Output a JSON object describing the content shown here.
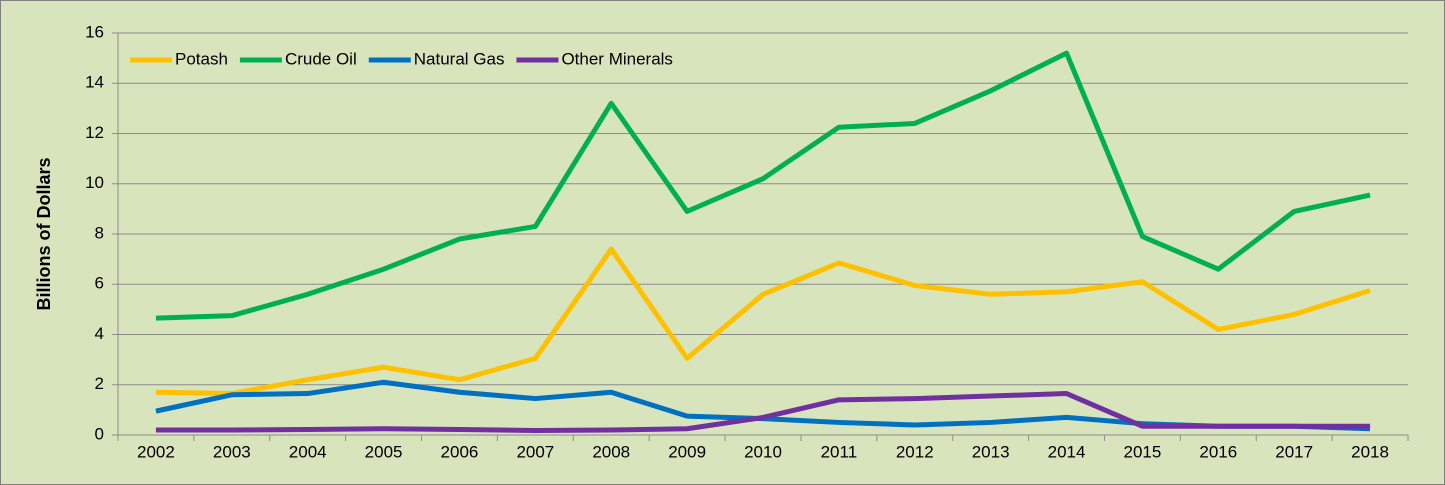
{
  "chart_data": {
    "type": "line",
    "y_label": "Billions of Dollars",
    "categories": [
      "2002",
      "2003",
      "2004",
      "2005",
      "2006",
      "2007",
      "2008",
      "2009",
      "2010",
      "2011",
      "2012",
      "2013",
      "2014",
      "2015",
      "2016",
      "2017",
      "2018"
    ],
    "series": [
      {
        "name": "Potash",
        "color": "#ffc000",
        "values": [
          1.7,
          1.65,
          2.2,
          2.7,
          2.2,
          3.05,
          7.4,
          3.05,
          5.6,
          6.85,
          5.95,
          5.6,
          5.7,
          6.1,
          4.2,
          4.8,
          5.75
        ]
      },
      {
        "name": "Crude Oil",
        "color": "#00b050",
        "values": [
          4.65,
          4.75,
          5.6,
          6.6,
          7.8,
          8.3,
          13.2,
          8.9,
          10.2,
          12.25,
          12.4,
          13.7,
          15.2,
          7.9,
          6.6,
          8.9,
          9.55
        ]
      },
      {
        "name": "Natural Gas",
        "color": "#0070c0",
        "values": [
          0.95,
          1.6,
          1.65,
          2.1,
          1.7,
          1.45,
          1.7,
          0.75,
          0.65,
          0.5,
          0.4,
          0.5,
          0.7,
          0.45,
          0.35,
          0.35,
          0.25
        ]
      },
      {
        "name": "Other Minerals",
        "color": "#7030a0",
        "values": [
          0.2,
          0.2,
          0.22,
          0.25,
          0.22,
          0.18,
          0.2,
          0.25,
          0.7,
          1.4,
          1.45,
          1.55,
          1.65,
          0.35,
          0.35,
          0.35,
          0.35
        ]
      }
    ],
    "ylim": [
      0,
      16
    ],
    "yticks": [
      0,
      2,
      4,
      6,
      8,
      10,
      12,
      14,
      16
    ],
    "grid": true,
    "legend": "top-left"
  }
}
